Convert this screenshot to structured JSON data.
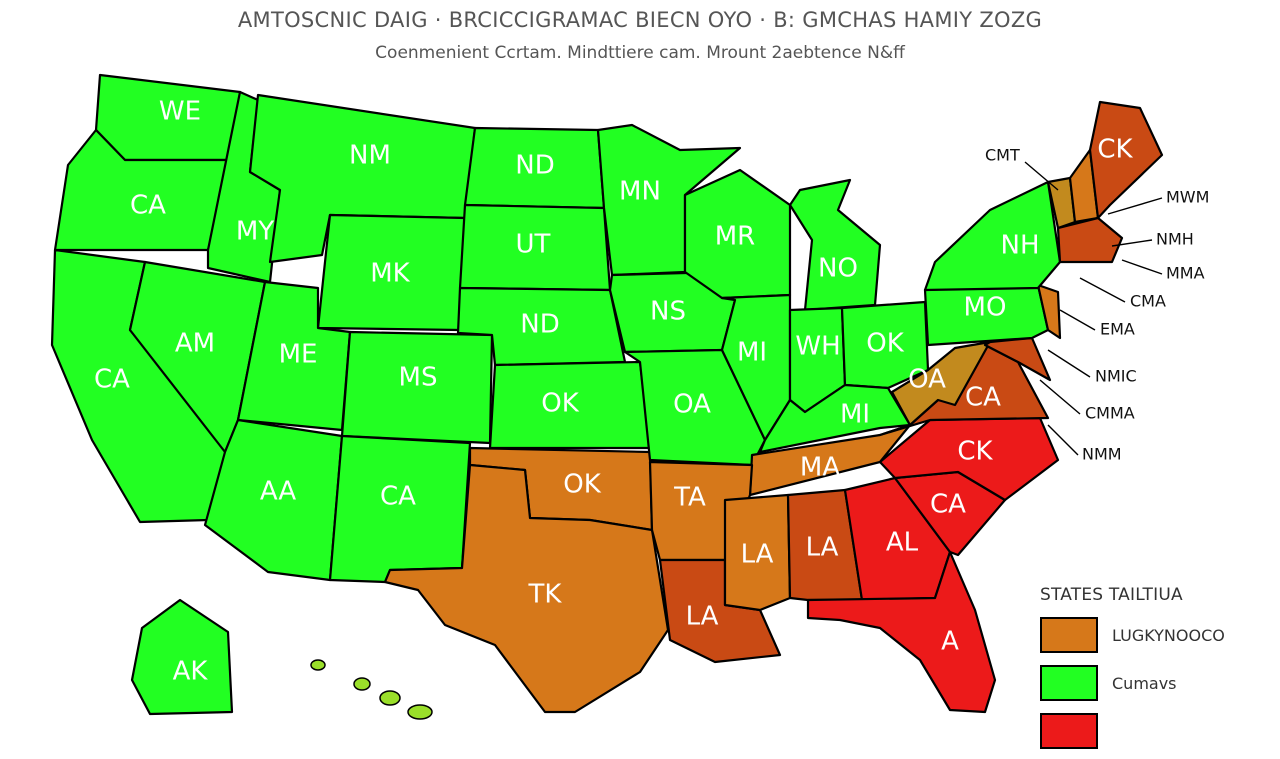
{
  "title": "AMTOSCNIC DAIG · BRCICCIGRAMAC  BIECN OYO  · B: GMCHAS   HAMIY ZOZG",
  "subtitle": "Coenmenient  Ccrtam.  Mindttiere cam.  Mrount  2aebtence N&ff",
  "colors": {
    "green": "#22ff22",
    "orange": "#d6781a",
    "rust": "#c94a14",
    "red": "#ec1a1a",
    "gold": "#c28a1e"
  },
  "states": [
    {
      "id": "wa",
      "label": "WE",
      "color": "green"
    },
    {
      "id": "mt",
      "label": "NM",
      "color": "green"
    },
    {
      "id": "nd",
      "label": "ND",
      "color": "green"
    },
    {
      "id": "mn",
      "label": "MN",
      "color": "green"
    },
    {
      "id": "or",
      "label": "CA",
      "color": "green"
    },
    {
      "id": "id",
      "label": "MY",
      "color": "green"
    },
    {
      "id": "sd",
      "label": "UT",
      "color": "green"
    },
    {
      "id": "wy",
      "label": "MK",
      "color": "green"
    },
    {
      "id": "wi",
      "label": "MR",
      "color": "green"
    },
    {
      "id": "mi",
      "label": "NO",
      "color": "green"
    },
    {
      "id": "ny",
      "label": "NH",
      "color": "green"
    },
    {
      "id": "me",
      "label": "CK",
      "color": "rust"
    },
    {
      "id": "ne",
      "label": "ND",
      "color": "green"
    },
    {
      "id": "ia",
      "label": "NS",
      "color": "green"
    },
    {
      "id": "pa",
      "label": "MO",
      "color": "green"
    },
    {
      "id": "nv",
      "label": "AM",
      "color": "green"
    },
    {
      "id": "ut",
      "label": "ME",
      "color": "green"
    },
    {
      "id": "co",
      "label": "MS",
      "color": "green"
    },
    {
      "id": "ca",
      "label": "CA",
      "color": "green"
    },
    {
      "id": "il",
      "label": "MI",
      "color": "green"
    },
    {
      "id": "in",
      "label": "WH",
      "color": "green"
    },
    {
      "id": "oh",
      "label": "OK",
      "color": "green"
    },
    {
      "id": "ks",
      "label": "OK",
      "color": "green"
    },
    {
      "id": "mo",
      "label": "OA",
      "color": "green"
    },
    {
      "id": "ky",
      "label": "MI",
      "color": "green"
    },
    {
      "id": "wv",
      "label": "OA",
      "color": "gold"
    },
    {
      "id": "va",
      "label": "CA",
      "color": "rust"
    },
    {
      "id": "tn",
      "label": "MA",
      "color": "orange"
    },
    {
      "id": "nc",
      "label": "CK",
      "color": "red"
    },
    {
      "id": "az",
      "label": "AA",
      "color": "green"
    },
    {
      "id": "nm",
      "label": "CA",
      "color": "green"
    },
    {
      "id": "ok",
      "label": "OK",
      "color": "orange"
    },
    {
      "id": "ar",
      "label": "TA",
      "color": "orange"
    },
    {
      "id": "ms",
      "label": "LA",
      "color": "orange"
    },
    {
      "id": "al",
      "label": "LA",
      "color": "rust"
    },
    {
      "id": "ga",
      "label": "AL",
      "color": "red"
    },
    {
      "id": "sc",
      "label": "CA",
      "color": "red"
    },
    {
      "id": "tx",
      "label": "TK",
      "color": "orange"
    },
    {
      "id": "la",
      "label": "LA",
      "color": "rust"
    },
    {
      "id": "fl",
      "label": "A",
      "color": "red"
    },
    {
      "id": "ak",
      "label": "AK",
      "color": "green"
    },
    {
      "id": "nh",
      "label": "",
      "color": "orange"
    },
    {
      "id": "vt",
      "label": "",
      "color": "gold"
    },
    {
      "id": "ma",
      "label": "",
      "color": "rust"
    },
    {
      "id": "nj",
      "label": "",
      "color": "orange"
    },
    {
      "id": "md",
      "label": "",
      "color": "rust"
    }
  ],
  "callouts": [
    "CMT",
    "MWM",
    "NMH",
    "MMA",
    "CMA",
    "EMA",
    "NMIC",
    "CMMA",
    "NMM"
  ],
  "legend": {
    "title": "STATES TAILTIUA",
    "items": [
      {
        "label": "LUGKYNOOCO",
        "color": "orange"
      },
      {
        "label": "Cumavs",
        "color": "green"
      },
      {
        "label": "",
        "color": "red"
      }
    ]
  }
}
